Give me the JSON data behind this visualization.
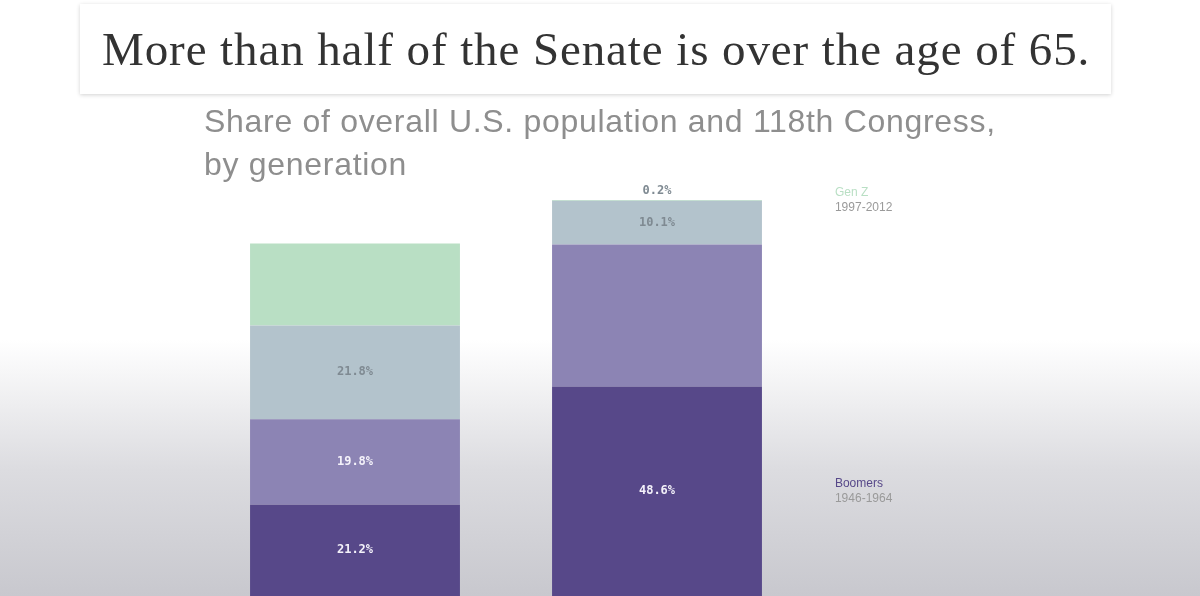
{
  "chart_data": {
    "type": "bar",
    "title": "Share of overall U.S. population and 118th Congress, by generation",
    "annotations": [
      "More than half of the Senate is over the age of 65."
    ],
    "categories": [
      null,
      null
    ],
    "stacked": true,
    "tick_labels": false,
    "series": [
      {
        "name": "Boomers\n1946-1964",
        "color": "#574889",
        "values": [
          21.2,
          48.6
        ],
        "value_labels": [
          "21.2%",
          "48.6%"
        ]
      },
      {
        "color": "#8c84b4",
        "values": [
          19.8,
          33
        ],
        "value_labels": [
          "19.8%",
          null
        ]
      },
      {
        "color": "#b3c3cc",
        "values": [
          21.8,
          10.1
        ],
        "value_labels": [
          "21.8%",
          "10.1%"
        ]
      },
      {
        "name": "Gen Z\n1997-2012",
        "color": "#b9dfc4",
        "values": [
          19,
          0.2
        ],
        "value_labels": [
          null,
          "0.2%"
        ]
      }
    ]
  }
}
